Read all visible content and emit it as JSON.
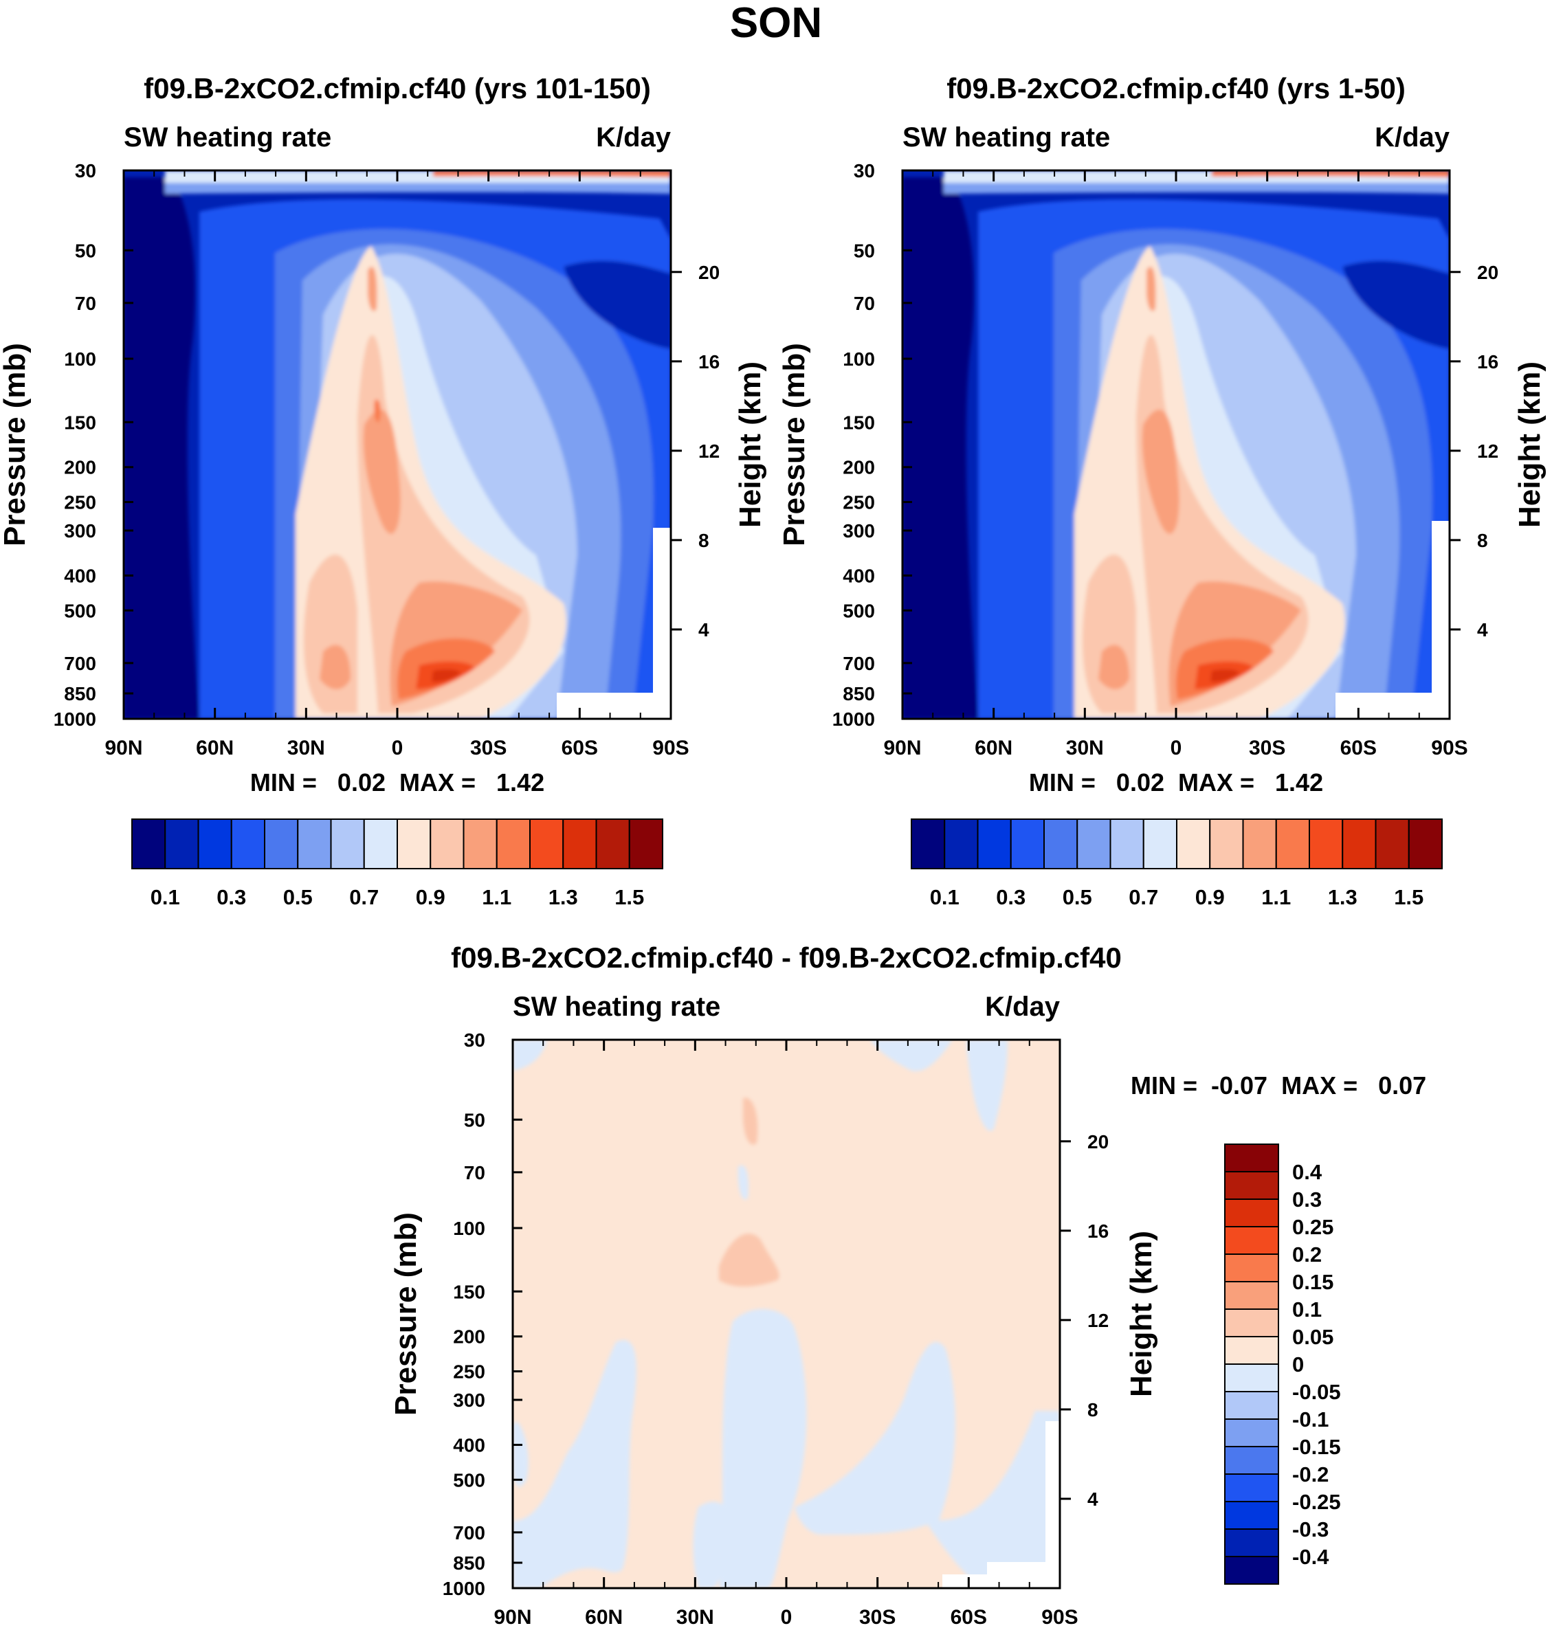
{
  "chart_data": {
    "type": "heatmap",
    "title": "SON",
    "panels": [
      {
        "id": "top_left",
        "title": "f09.B-2xCO2.cfmip.cf40 (yrs 101-150)",
        "left_label": "SW heating rate",
        "right_label": "K/day",
        "ylabel": "Pressure (mb)",
        "ylabel_right": "Height (km)",
        "x_ticks": [
          "90N",
          "60N",
          "30N",
          "0",
          "30S",
          "60S",
          "90S"
        ],
        "y_ticks": [
          "30",
          "50",
          "70",
          "100",
          "150",
          "200",
          "250",
          "300",
          "400",
          "500",
          "700",
          "850",
          "1000"
        ],
        "y_tick_values": [
          30,
          50,
          70,
          100,
          150,
          200,
          250,
          300,
          400,
          500,
          700,
          850,
          1000
        ],
        "height_ticks": [
          "20",
          "16",
          "12",
          "8",
          "4"
        ],
        "height_tick_values": [
          20,
          16,
          12,
          8,
          4
        ],
        "stats": "MIN =   0.02  MAX =   1.42",
        "min": 0.02,
        "max": 1.42,
        "colorbar": {
          "colors": [
            "#00037d",
            "#0022b4",
            "#0038e0",
            "#1f55f2",
            "#4b78ee",
            "#7da0f2",
            "#b1c8f8",
            "#dbe9fb",
            "#fde6d6",
            "#fbc7ae",
            "#f9a07b",
            "#f97a4c",
            "#f34b1e",
            "#dc300b",
            "#b31b09",
            "#880306"
          ],
          "labels": [
            "0.1",
            "0.3",
            "0.5",
            "0.7",
            "0.9",
            "1.1",
            "1.3",
            "1.5"
          ]
        }
      },
      {
        "id": "top_right",
        "title": "f09.B-2xCO2.cfmip.cf40 (yrs 1-50)",
        "left_label": "SW heating rate",
        "right_label": "K/day",
        "ylabel": "Pressure (mb)",
        "ylabel_right": "Height (km)",
        "x_ticks": [
          "90N",
          "60N",
          "30N",
          "0",
          "30S",
          "60S",
          "90S"
        ],
        "y_ticks": [
          "30",
          "50",
          "70",
          "100",
          "150",
          "200",
          "250",
          "300",
          "400",
          "500",
          "700",
          "850",
          "1000"
        ],
        "y_tick_values": [
          30,
          50,
          70,
          100,
          150,
          200,
          250,
          300,
          400,
          500,
          700,
          850,
          1000
        ],
        "height_ticks": [
          "20",
          "16",
          "12",
          "8",
          "4"
        ],
        "height_tick_values": [
          20,
          16,
          12,
          8,
          4
        ],
        "stats": "MIN =   0.02  MAX =   1.42",
        "min": 0.02,
        "max": 1.42,
        "colorbar": {
          "colors": [
            "#00037d",
            "#0022b4",
            "#0038e0",
            "#1f55f2",
            "#4b78ee",
            "#7da0f2",
            "#b1c8f8",
            "#dbe9fb",
            "#fde6d6",
            "#fbc7ae",
            "#f9a07b",
            "#f97a4c",
            "#f34b1e",
            "#dc300b",
            "#b31b09",
            "#880306"
          ],
          "labels": [
            "0.1",
            "0.3",
            "0.5",
            "0.7",
            "0.9",
            "1.1",
            "1.3",
            "1.5"
          ]
        }
      },
      {
        "id": "bottom_diff",
        "title": "f09.B-2xCO2.cfmip.cf40 - f09.B-2xCO2.cfmip.cf40",
        "left_label": "SW heating rate",
        "right_label": "K/day",
        "ylabel": "Pressure (mb)",
        "ylabel_right": "Height (km)",
        "x_ticks": [
          "90N",
          "60N",
          "30N",
          "0",
          "30S",
          "60S",
          "90S"
        ],
        "y_ticks": [
          "30",
          "50",
          "70",
          "100",
          "150",
          "200",
          "250",
          "300",
          "400",
          "500",
          "700",
          "850",
          "1000"
        ],
        "y_tick_values": [
          30,
          50,
          70,
          100,
          150,
          200,
          250,
          300,
          400,
          500,
          700,
          850,
          1000
        ],
        "height_ticks": [
          "20",
          "16",
          "12",
          "8",
          "4"
        ],
        "height_tick_values": [
          20,
          16,
          12,
          8,
          4
        ],
        "stats": "MIN =  -0.07  MAX =   0.07",
        "min": -0.07,
        "max": 0.07,
        "colorbar": {
          "colors": [
            "#880306",
            "#b31b09",
            "#dc300b",
            "#f34b1e",
            "#f97a4c",
            "#f9a07b",
            "#fbc7ae",
            "#fde6d6",
            "#dbe9fb",
            "#b1c8f8",
            "#7da0f2",
            "#4b78ee",
            "#1f55f2",
            "#0038e0",
            "#0022b4",
            "#00037d"
          ],
          "labels": [
            "0.4",
            "0.3",
            "0.25",
            "0.2",
            "0.15",
            "0.1",
            "0.05",
            "0",
            "-0.05",
            "-0.1",
            "-0.15",
            "-0.2",
            "-0.25",
            "-0.3",
            "-0.4"
          ]
        }
      }
    ]
  }
}
